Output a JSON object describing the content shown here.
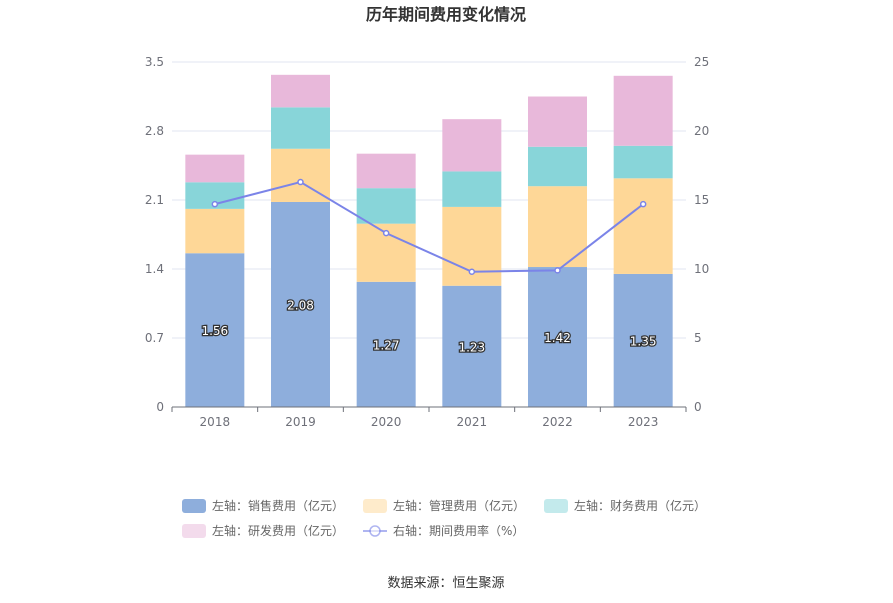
{
  "chart_data": {
    "type": "bar",
    "title": "历年期间费用变化情况",
    "categories": [
      "2018",
      "2019",
      "2020",
      "2021",
      "2022",
      "2023"
    ],
    "left_axis": {
      "min": 0,
      "max": 3.5,
      "ticks": [
        "0",
        "0.7",
        "1.4",
        "2.1",
        "2.8",
        "3.5"
      ]
    },
    "right_axis": {
      "min": 0,
      "max": 25,
      "ticks": [
        "0",
        "5",
        "10",
        "15",
        "20",
        "25"
      ]
    },
    "stacked_series": [
      {
        "name": "左轴：销售费用（亿元）",
        "color": "#8eaedc",
        "values": [
          1.56,
          2.08,
          1.27,
          1.23,
          1.42,
          1.35
        ],
        "show_labels": true
      },
      {
        "name": "左轴：管理费用（亿元）",
        "color": "#fed797",
        "values": [
          0.45,
          0.54,
          0.59,
          0.8,
          0.82,
          0.97
        ]
      },
      {
        "name": "左轴：财务费用（亿元）",
        "color": "#88d5d9",
        "values": [
          0.27,
          0.42,
          0.36,
          0.36,
          0.4,
          0.33
        ]
      },
      {
        "name": "左轴：研发费用（亿元）",
        "color": "#e8b8da",
        "values": [
          0.28,
          0.33,
          0.35,
          0.53,
          0.51,
          0.71
        ]
      }
    ],
    "line_series": {
      "name": "右轴：期间费用率（%）",
      "color": "#7b84e8",
      "values": [
        14.7,
        16.3,
        12.6,
        9.8,
        9.9,
        14.7
      ]
    },
    "legend_position": "bottom",
    "grid": true
  },
  "source": "数据来源：恒生聚源"
}
